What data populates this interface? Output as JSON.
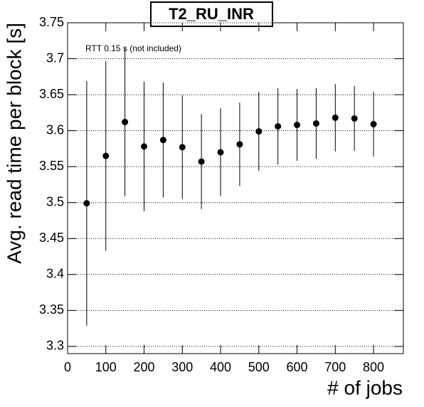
{
  "chart_data": {
    "type": "errorbar",
    "title": "T2_RU_INR",
    "annotation": "RTT 0.15 s (not included)",
    "x_label": "# of jobs",
    "y_label": "Avg. read time per block [s]",
    "x": [
      50,
      100,
      150,
      200,
      250,
      300,
      350,
      400,
      450,
      500,
      550,
      600,
      650,
      700,
      750,
      800
    ],
    "values": [
      3.499,
      3.565,
      3.612,
      3.578,
      3.587,
      3.577,
      3.557,
      3.57,
      3.581,
      3.599,
      3.606,
      3.608,
      3.61,
      3.618,
      3.617,
      3.609
    ],
    "errors": [
      0.17,
      0.132,
      0.103,
      0.09,
      0.08,
      0.072,
      0.066,
      0.061,
      0.058,
      0.055,
      0.053,
      0.05,
      0.049,
      0.047,
      0.045,
      0.045
    ],
    "color": "#000000",
    "xlim": [
      0,
      878
    ],
    "ylim": [
      3.29,
      3.75
    ],
    "xticks": [
      0,
      100,
      200,
      300,
      400,
      500,
      600,
      700,
      800
    ],
    "yticks": [
      3.3,
      3.35,
      3.4,
      3.45,
      3.5,
      3.55,
      3.6,
      3.65,
      3.7,
      3.75
    ],
    "grid": true
  }
}
